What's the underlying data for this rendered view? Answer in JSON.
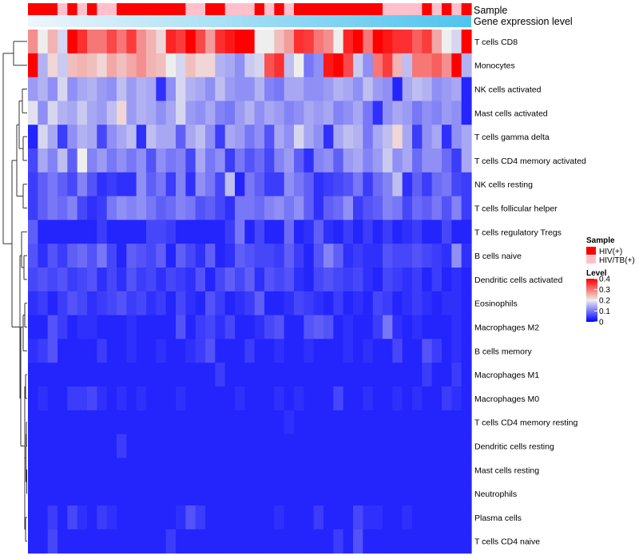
{
  "chart_data": {
    "type": "heatmap",
    "annotation_tracks": [
      "Sample",
      "Gene expression level"
    ],
    "rows": [
      "T cells CD8",
      "Monocytes",
      "NK cells activated",
      "Mast cells activated",
      "T cells gamma delta",
      "T cells CD4 memory activated",
      "NK cells resting",
      "T cells follicular helper",
      "T cells regulatory  Tregs",
      "B cells naive",
      "Dendritic cells activated",
      "Eosinophils",
      "Macrophages M2",
      "B cells memory",
      "Macrophages M1",
      "Macrophages M0",
      "T cells CD4 memory resting",
      "Dendritic cells resting",
      "Mast cells resting",
      "Neutrophils",
      "Plasma cells",
      "T cells CD4 naive"
    ],
    "n_columns": 45,
    "sample_groups": [
      "HIV(+)",
      "HIV(+)",
      "HIV(+)",
      "HIV/TB(+)",
      "HIV(+)",
      "HIV/TB(+)",
      "HIV(+)",
      "HIV/TB(+)",
      "HIV/TB(+)",
      "HIV(+)",
      "HIV(+)",
      "HIV(+)",
      "HIV(+)",
      "HIV(+)",
      "HIV(+)",
      "HIV(+)",
      "HIV/TB(+)",
      "HIV/TB(+)",
      "HIV(+)",
      "HIV(+)",
      "HIV/TB(+)",
      "HIV/TB(+)",
      "HIV/TB(+)",
      "HIV(+)",
      "HIV/TB(+)",
      "HIV(+)",
      "HIV/TB(+)",
      "HIV(+)",
      "HIV(+)",
      "HIV(+)",
      "HIV(+)",
      "HIV(+)",
      "HIV(+)",
      "HIV(+)",
      "HIV(+)",
      "HIV(+)",
      "HIV/TB(+)",
      "HIV/TB(+)",
      "HIV/TB(+)",
      "HIV/TB(+)",
      "HIV(+)",
      "HIV/TB(+)",
      "HIV(+)",
      "HIV/TB(+)",
      "HIV(+)"
    ],
    "expression_gradient": [
      0.05,
      1.0
    ],
    "values": [
      [
        0.28,
        0.2,
        0.25,
        0.18,
        0.4,
        0.36,
        0.3,
        0.3,
        0.34,
        0.3,
        0.35,
        0.28,
        0.25,
        0.22,
        0.37,
        0.35,
        0.4,
        0.34,
        0.27,
        0.36,
        0.38,
        0.4,
        0.4,
        0.2,
        0.2,
        0.24,
        0.27,
        0.36,
        0.35,
        0.3,
        0.28,
        0.2,
        0.37,
        0.4,
        0.3,
        0.4,
        0.38,
        0.36,
        0.36,
        0.32,
        0.35,
        0.26,
        0.2,
        0.18,
        0.4
      ],
      [
        0.4,
        0.15,
        0.22,
        0.17,
        0.24,
        0.25,
        0.24,
        0.22,
        0.26,
        0.24,
        0.26,
        0.28,
        0.25,
        0.24,
        0.2,
        0.18,
        0.24,
        0.22,
        0.22,
        0.15,
        0.14,
        0.12,
        0.17,
        0.18,
        0.33,
        0.36,
        0.16,
        0.2,
        0.1,
        0.12,
        0.38,
        0.4,
        0.34,
        0.17,
        0.12,
        0.3,
        0.35,
        0.25,
        0.16,
        0.3,
        0.3,
        0.32,
        0.28,
        0.4,
        0.15
      ],
      [
        0.13,
        0.15,
        0.12,
        0.18,
        0.12,
        0.14,
        0.15,
        0.13,
        0.12,
        0.16,
        0.13,
        0.15,
        0.14,
        0.04,
        0.12,
        0.18,
        0.15,
        0.14,
        0.12,
        0.16,
        0.13,
        0.12,
        0.12,
        0.15,
        0.11,
        0.1,
        0.14,
        0.14,
        0.12,
        0.12,
        0.13,
        0.15,
        0.14,
        0.12,
        0.16,
        0.13,
        0.12,
        0.03,
        0.14,
        0.16,
        0.15,
        0.12,
        0.13,
        0.14,
        0.03
      ],
      [
        0.19,
        0.12,
        0.18,
        0.15,
        0.14,
        0.17,
        0.14,
        0.13,
        0.16,
        0.22,
        0.13,
        0.15,
        0.14,
        0.12,
        0.14,
        0.18,
        0.13,
        0.12,
        0.14,
        0.11,
        0.1,
        0.13,
        0.15,
        0.12,
        0.14,
        0.13,
        0.11,
        0.12,
        0.14,
        0.13,
        0.14,
        0.11,
        0.12,
        0.14,
        0.1,
        0.04,
        0.12,
        0.14,
        0.13,
        0.1,
        0.12,
        0.11,
        0.13,
        0.12,
        0.03
      ],
      [
        0.03,
        0.18,
        0.14,
        0.05,
        0.12,
        0.15,
        0.14,
        0.06,
        0.12,
        0.14,
        0.16,
        0.04,
        0.16,
        0.14,
        0.14,
        0.08,
        0.14,
        0.16,
        0.12,
        0.05,
        0.14,
        0.13,
        0.1,
        0.12,
        0.07,
        0.14,
        0.12,
        0.18,
        0.14,
        0.12,
        0.04,
        0.14,
        0.16,
        0.15,
        0.1,
        0.14,
        0.16,
        0.22,
        0.14,
        0.05,
        0.12,
        0.14,
        0.04,
        0.12,
        0.14
      ],
      [
        0.06,
        0.14,
        0.11,
        0.16,
        0.08,
        0.2,
        0.11,
        0.13,
        0.1,
        0.12,
        0.1,
        0.12,
        0.07,
        0.12,
        0.1,
        0.11,
        0.06,
        0.14,
        0.1,
        0.12,
        0.05,
        0.1,
        0.07,
        0.09,
        0.06,
        0.11,
        0.13,
        0.08,
        0.04,
        0.11,
        0.12,
        0.08,
        0.13,
        0.14,
        0.11,
        0.13,
        0.17,
        0.12,
        0.14,
        0.09,
        0.12,
        0.12,
        0.09,
        0.05,
        0.14
      ],
      [
        0.05,
        0.08,
        0.1,
        0.08,
        0.06,
        0.11,
        0.07,
        0.04,
        0.05,
        0.04,
        0.04,
        0.12,
        0.08,
        0.1,
        0.05,
        0.11,
        0.04,
        0.12,
        0.1,
        0.06,
        0.16,
        0.03,
        0.1,
        0.08,
        0.05,
        0.05,
        0.12,
        0.1,
        0.08,
        0.04,
        0.05,
        0.06,
        0.07,
        0.1,
        0.05,
        0.09,
        0.11,
        0.16,
        0.04,
        0.08,
        0.05,
        0.09,
        0.1,
        0.06,
        0.05
      ],
      [
        0.05,
        0.08,
        0.1,
        0.09,
        0.11,
        0.06,
        0.04,
        0.05,
        0.1,
        0.12,
        0.11,
        0.12,
        0.1,
        0.08,
        0.09,
        0.11,
        0.1,
        0.07,
        0.08,
        0.06,
        0.04,
        0.1,
        0.1,
        0.09,
        0.11,
        0.12,
        0.1,
        0.12,
        0.08,
        0.04,
        0.08,
        0.09,
        0.12,
        0.05,
        0.07,
        0.08,
        0.11,
        0.1,
        0.06,
        0.09,
        0.08,
        0.1,
        0.07,
        0.11,
        0.05
      ],
      [
        0.08,
        0.03,
        0.03,
        0.03,
        0.03,
        0.03,
        0.03,
        0.05,
        0.03,
        0.03,
        0.03,
        0.03,
        0.06,
        0.06,
        0.05,
        0.03,
        0.03,
        0.03,
        0.03,
        0.03,
        0.05,
        0.1,
        0.03,
        0.06,
        0.03,
        0.03,
        0.09,
        0.03,
        0.04,
        0.08,
        0.04,
        0.03,
        0.05,
        0.03,
        0.05,
        0.03,
        0.05,
        0.03,
        0.04,
        0.05,
        0.03,
        0.03,
        0.06,
        0.03,
        0.03
      ],
      [
        0.07,
        0.04,
        0.07,
        0.05,
        0.08,
        0.09,
        0.07,
        0.1,
        0.06,
        0.03,
        0.08,
        0.07,
        0.06,
        0.08,
        0.03,
        0.08,
        0.06,
        0.04,
        0.08,
        0.03,
        0.04,
        0.08,
        0.07,
        0.06,
        0.06,
        0.05,
        0.08,
        0.05,
        0.03,
        0.07,
        0.11,
        0.08,
        0.04,
        0.05,
        0.04,
        0.04,
        0.07,
        0.06,
        0.06,
        0.07,
        0.06,
        0.05,
        0.04,
        0.12,
        0.04
      ],
      [
        0.06,
        0.07,
        0.06,
        0.07,
        0.05,
        0.06,
        0.07,
        0.04,
        0.06,
        0.04,
        0.07,
        0.05,
        0.06,
        0.04,
        0.06,
        0.05,
        0.04,
        0.07,
        0.03,
        0.06,
        0.08,
        0.06,
        0.08,
        0.04,
        0.07,
        0.06,
        0.07,
        0.04,
        0.03,
        0.06,
        0.07,
        0.06,
        0.05,
        0.06,
        0.04,
        0.03,
        0.06,
        0.05,
        0.04,
        0.05,
        0.03,
        0.05,
        0.03,
        0.04,
        0.03
      ],
      [
        0.04,
        0.05,
        0.03,
        0.05,
        0.07,
        0.06,
        0.04,
        0.05,
        0.06,
        0.07,
        0.05,
        0.06,
        0.04,
        0.05,
        0.03,
        0.06,
        0.04,
        0.03,
        0.07,
        0.05,
        0.03,
        0.04,
        0.05,
        0.08,
        0.03,
        0.03,
        0.04,
        0.06,
        0.05,
        0.04,
        0.03,
        0.05,
        0.03,
        0.04,
        0.03,
        0.06,
        0.05,
        0.03,
        0.04,
        0.05,
        0.04,
        0.03,
        0.04,
        0.04,
        0.03
      ],
      [
        0.03,
        0.03,
        0.07,
        0.05,
        0.03,
        0.04,
        0.04,
        0.03,
        0.03,
        0.03,
        0.04,
        0.03,
        0.03,
        0.03,
        0.03,
        0.07,
        0.03,
        0.05,
        0.06,
        0.04,
        0.06,
        0.03,
        0.03,
        0.04,
        0.06,
        0.07,
        0.03,
        0.03,
        0.07,
        0.08,
        0.07,
        0.03,
        0.04,
        0.03,
        0.03,
        0.05,
        0.1,
        0.04,
        0.03,
        0.04,
        0.03,
        0.03,
        0.03,
        0.04,
        0.03
      ],
      [
        0.04,
        0.05,
        0.07,
        0.03,
        0.03,
        0.03,
        0.03,
        0.05,
        0.03,
        0.03,
        0.04,
        0.03,
        0.03,
        0.04,
        0.03,
        0.03,
        0.04,
        0.05,
        0.07,
        0.03,
        0.03,
        0.03,
        0.05,
        0.03,
        0.03,
        0.04,
        0.03,
        0.03,
        0.04,
        0.03,
        0.03,
        0.03,
        0.04,
        0.03,
        0.04,
        0.03,
        0.03,
        0.06,
        0.03,
        0.03,
        0.07,
        0.05,
        0.03,
        0.04,
        0.03
      ],
      [
        0.03,
        0.03,
        0.03,
        0.03,
        0.03,
        0.03,
        0.03,
        0.03,
        0.03,
        0.03,
        0.03,
        0.03,
        0.03,
        0.03,
        0.03,
        0.03,
        0.03,
        0.03,
        0.03,
        0.05,
        0.03,
        0.03,
        0.03,
        0.03,
        0.03,
        0.03,
        0.03,
        0.03,
        0.03,
        0.03,
        0.03,
        0.03,
        0.03,
        0.03,
        0.03,
        0.03,
        0.03,
        0.03,
        0.03,
        0.03,
        0.05,
        0.03,
        0.03,
        0.05,
        0.03
      ],
      [
        0.03,
        0.04,
        0.03,
        0.03,
        0.05,
        0.05,
        0.06,
        0.04,
        0.03,
        0.04,
        0.03,
        0.04,
        0.03,
        0.03,
        0.03,
        0.04,
        0.03,
        0.03,
        0.03,
        0.03,
        0.03,
        0.04,
        0.03,
        0.03,
        0.03,
        0.04,
        0.03,
        0.04,
        0.03,
        0.03,
        0.03,
        0.06,
        0.03,
        0.03,
        0.04,
        0.03,
        0.03,
        0.04,
        0.03,
        0.04,
        0.03,
        0.03,
        0.05,
        0.04,
        0.03
      ],
      [
        0.03,
        0.03,
        0.03,
        0.03,
        0.03,
        0.03,
        0.03,
        0.03,
        0.03,
        0.03,
        0.03,
        0.03,
        0.03,
        0.03,
        0.03,
        0.03,
        0.03,
        0.03,
        0.03,
        0.03,
        0.03,
        0.03,
        0.03,
        0.03,
        0.03,
        0.03,
        0.04,
        0.03,
        0.03,
        0.03,
        0.03,
        0.03,
        0.03,
        0.03,
        0.03,
        0.03,
        0.03,
        0.03,
        0.03,
        0.03,
        0.03,
        0.03,
        0.03,
        0.03,
        0.03
      ],
      [
        0.03,
        0.03,
        0.03,
        0.03,
        0.03,
        0.03,
        0.03,
        0.03,
        0.03,
        0.05,
        0.03,
        0.03,
        0.03,
        0.03,
        0.03,
        0.03,
        0.03,
        0.03,
        0.03,
        0.03,
        0.03,
        0.03,
        0.03,
        0.03,
        0.03,
        0.03,
        0.03,
        0.03,
        0.03,
        0.03,
        0.03,
        0.03,
        0.03,
        0.03,
        0.03,
        0.03,
        0.03,
        0.03,
        0.03,
        0.03,
        0.03,
        0.03,
        0.03,
        0.03,
        0.03
      ],
      [
        0.03,
        0.03,
        0.03,
        0.03,
        0.03,
        0.03,
        0.03,
        0.03,
        0.03,
        0.03,
        0.03,
        0.03,
        0.03,
        0.03,
        0.03,
        0.03,
        0.03,
        0.03,
        0.03,
        0.03,
        0.03,
        0.03,
        0.03,
        0.03,
        0.03,
        0.03,
        0.03,
        0.03,
        0.03,
        0.03,
        0.03,
        0.03,
        0.03,
        0.03,
        0.03,
        0.03,
        0.03,
        0.03,
        0.03,
        0.03,
        0.03,
        0.03,
        0.03,
        0.03,
        0.03
      ],
      [
        0.03,
        0.03,
        0.03,
        0.03,
        0.03,
        0.03,
        0.03,
        0.03,
        0.03,
        0.03,
        0.03,
        0.03,
        0.03,
        0.03,
        0.03,
        0.03,
        0.03,
        0.03,
        0.03,
        0.03,
        0.03,
        0.03,
        0.03,
        0.03,
        0.03,
        0.03,
        0.03,
        0.03,
        0.03,
        0.03,
        0.03,
        0.03,
        0.03,
        0.03,
        0.03,
        0.03,
        0.03,
        0.03,
        0.03,
        0.03,
        0.03,
        0.03,
        0.03,
        0.03,
        0.03
      ],
      [
        0.03,
        0.03,
        0.05,
        0.03,
        0.06,
        0.04,
        0.03,
        0.05,
        0.04,
        0.03,
        0.03,
        0.03,
        0.03,
        0.03,
        0.03,
        0.04,
        0.07,
        0.05,
        0.03,
        0.03,
        0.03,
        0.03,
        0.03,
        0.03,
        0.03,
        0.04,
        0.03,
        0.03,
        0.03,
        0.05,
        0.03,
        0.03,
        0.03,
        0.06,
        0.04,
        0.04,
        0.03,
        0.03,
        0.04,
        0.03,
        0.03,
        0.03,
        0.03,
        0.03,
        0.03
      ],
      [
        0.03,
        0.03,
        0.06,
        0.03,
        0.03,
        0.03,
        0.03,
        0.03,
        0.03,
        0.03,
        0.03,
        0.03,
        0.03,
        0.03,
        0.05,
        0.03,
        0.03,
        0.03,
        0.03,
        0.03,
        0.03,
        0.03,
        0.03,
        0.03,
        0.03,
        0.03,
        0.03,
        0.03,
        0.03,
        0.03,
        0.03,
        0.05,
        0.03,
        0.07,
        0.03,
        0.03,
        0.03,
        0.03,
        0.03,
        0.03,
        0.03,
        0.03,
        0.03,
        0.03,
        0.03
      ]
    ],
    "legend": {
      "sample_title": "Sample",
      "sample_items": [
        {
          "label": "HIV(+)",
          "color": "#ff0000"
        },
        {
          "label": "HIV/TB(+)",
          "color": "#ffc0cb"
        }
      ],
      "level_title": "Level",
      "level_ticks": [
        0,
        0.1,
        0.2,
        0.3,
        0.4
      ],
      "level_tick_labels": [
        "0",
        "0.1",
        "0.2",
        "0.3",
        "0.4"
      ]
    },
    "color_scale": {
      "low": "#0000ff",
      "mid": "#eeeeee",
      "high": "#ff0000",
      "min": 0,
      "mid_value": 0.2,
      "max": 0.4
    },
    "expression_colors": {
      "low": "#eef6fb",
      "high": "#4fc3ee"
    }
  }
}
